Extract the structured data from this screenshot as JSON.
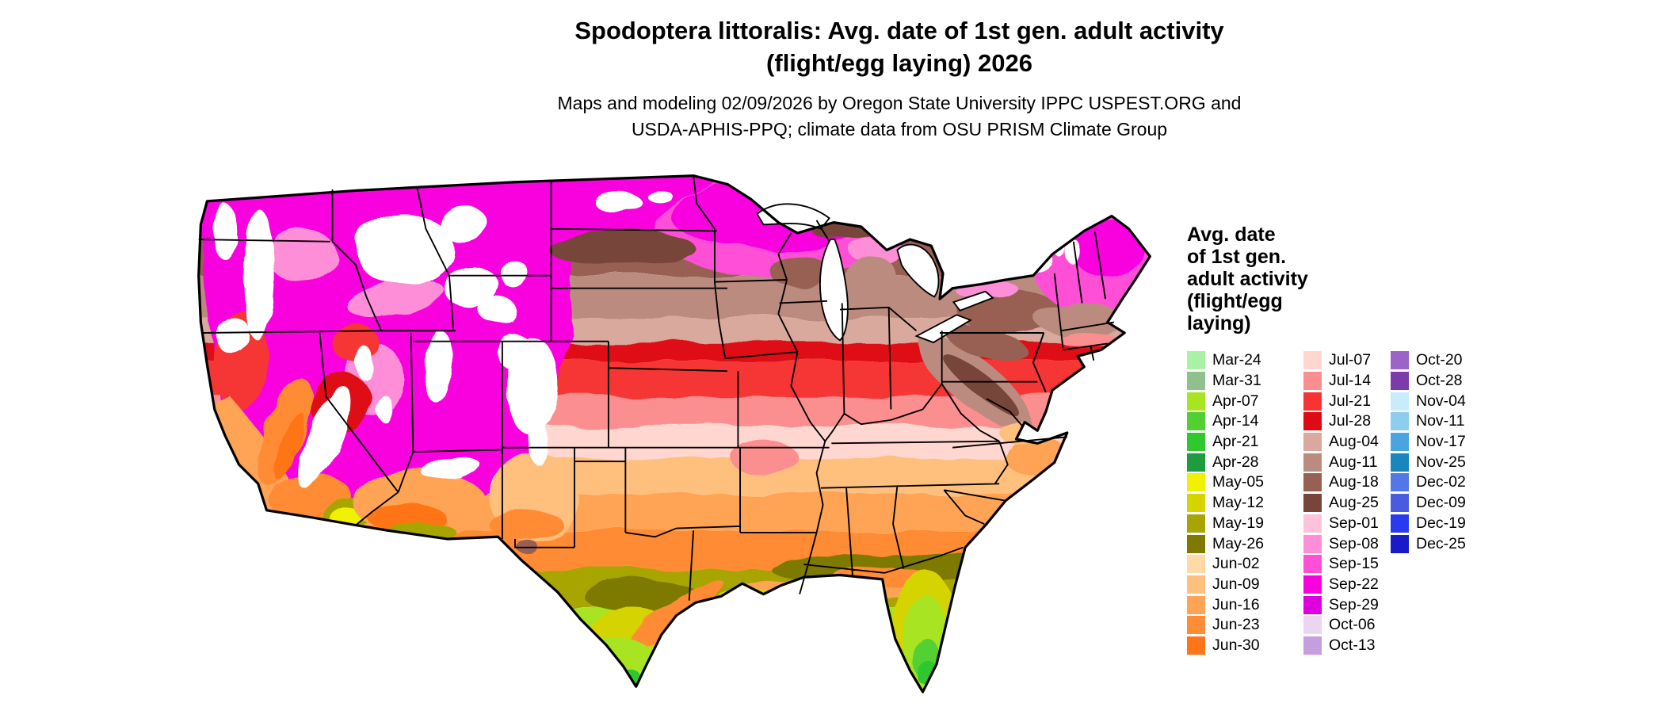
{
  "header": {
    "title_line1": "Spodoptera littoralis: Avg. date of 1st gen. adult activity",
    "title_line2": "(flight/egg laying) 2026",
    "subtitle_line1": "Maps and modeling 02/09/2026 by Oregon State University IPPC USPEST.ORG and",
    "subtitle_line2": "USDA-APHIS-PPQ; climate data from OSU PRISM Climate Group"
  },
  "map": {
    "name": "Continental US average date of first generation adult activity",
    "outline_color": "#000000",
    "no_data_color": "#FFFFFF",
    "water_color": "#FFFFFF"
  },
  "legend": {
    "title_lines": [
      "Avg. date",
      "of 1st gen.",
      "adult activity",
      "(flight/egg",
      "laying)"
    ],
    "columns": [
      {
        "items": [
          {
            "label": "Mar-24",
            "color": "#A9F1A4"
          },
          {
            "label": "Mar-31",
            "color": "#8FC18F"
          },
          {
            "label": "Apr-07",
            "color": "#A8E420"
          },
          {
            "label": "Apr-14",
            "color": "#52D033"
          },
          {
            "label": "Apr-21",
            "color": "#2FC82F"
          },
          {
            "label": "Apr-28",
            "color": "#1F9B40"
          },
          {
            "label": "May-05",
            "color": "#F0F000"
          },
          {
            "label": "May-12",
            "color": "#D6D400"
          },
          {
            "label": "May-19",
            "color": "#A8A400"
          },
          {
            "label": "May-26",
            "color": "#7E7A00"
          },
          {
            "label": "Jun-02",
            "color": "#FFD9A6"
          },
          {
            "label": "Jun-09",
            "color": "#FFC07E"
          },
          {
            "label": "Jun-16",
            "color": "#FFA455"
          },
          {
            "label": "Jun-23",
            "color": "#FF8C36"
          },
          {
            "label": "Jun-30",
            "color": "#FF7518"
          }
        ]
      },
      {
        "items": [
          {
            "label": "Jul-07",
            "color": "#FFD7D0"
          },
          {
            "label": "Jul-14",
            "color": "#FB8F8F"
          },
          {
            "label": "Jul-21",
            "color": "#F63434"
          },
          {
            "label": "Jul-28",
            "color": "#DE0A14"
          },
          {
            "label": "Aug-04",
            "color": "#D8A99C"
          },
          {
            "label": "Aug-11",
            "color": "#BC8B7F"
          },
          {
            "label": "Aug-18",
            "color": "#985F53"
          },
          {
            "label": "Aug-25",
            "color": "#78453A"
          },
          {
            "label": "Sep-01",
            "color": "#FFC2DB"
          },
          {
            "label": "Sep-08",
            "color": "#FF8ED9"
          },
          {
            "label": "Sep-15",
            "color": "#FF4FD6"
          },
          {
            "label": "Sep-22",
            "color": "#F900DF"
          },
          {
            "label": "Sep-29",
            "color": "#DE00DE"
          },
          {
            "label": "Oct-06",
            "color": "#EAD6F1"
          },
          {
            "label": "Oct-13",
            "color": "#C59EE0"
          }
        ]
      },
      {
        "items": [
          {
            "label": "Oct-20",
            "color": "#9C63C8"
          },
          {
            "label": "Oct-28",
            "color": "#7B3BA9"
          },
          {
            "label": "Nov-04",
            "color": "#C9ECFA"
          },
          {
            "label": "Nov-11",
            "color": "#8FCDEF"
          },
          {
            "label": "Nov-17",
            "color": "#48A5DF"
          },
          {
            "label": "Nov-25",
            "color": "#1787BD"
          },
          {
            "label": "Dec-02",
            "color": "#5277E8"
          },
          {
            "label": "Dec-09",
            "color": "#4A5BE0"
          },
          {
            "label": "Dec-19",
            "color": "#2A3BEF"
          },
          {
            "label": "Dec-25",
            "color": "#1A1AC8"
          }
        ]
      }
    ]
  }
}
